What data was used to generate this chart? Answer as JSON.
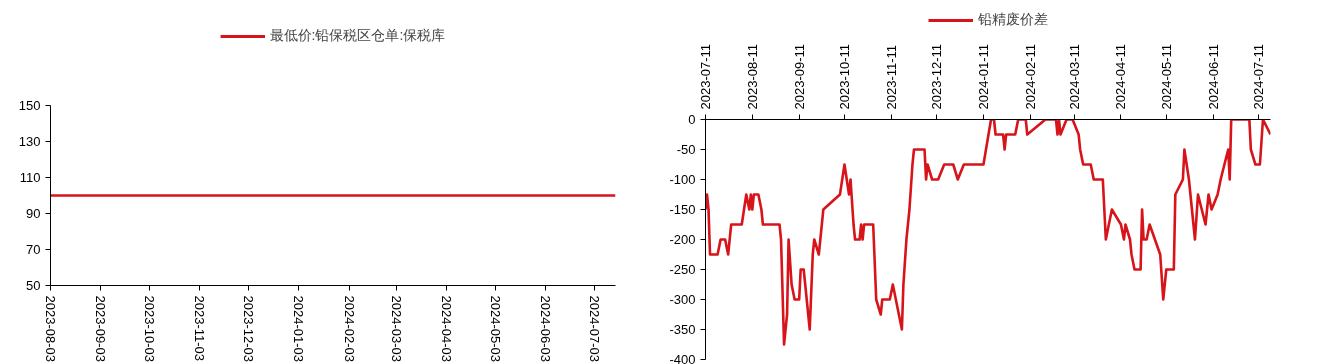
{
  "chart_data": [
    {
      "type": "line",
      "legend": "top",
      "marker": "none",
      "line_style": "solid",
      "grid": false,
      "x": [
        "2023-08-03",
        "2024-07-16"
      ],
      "series": [
        {
          "name": "最低价:铅保税区仓单:保税库",
          "color": "#d7141a",
          "values": [
            100,
            100
          ]
        }
      ],
      "xlim": [
        "2023-08-03",
        "2024-07-16"
      ],
      "xticks": [
        "2023-08-03",
        "2023-09-03",
        "2023-10-03",
        "2023-11-03",
        "2023-12-03",
        "2024-01-03",
        "2024-02-03",
        "2024-03-03",
        "2024-04-03",
        "2024-05-03",
        "2024-06-03",
        "2024-07-03"
      ],
      "ylim": [
        50,
        150
      ],
      "yticks": [
        50,
        70,
        90,
        110,
        130,
        150
      ]
    },
    {
      "type": "line",
      "legend": "top",
      "marker": "none",
      "line_style": "solid",
      "grid": false,
      "x": [
        "2023-07-11",
        "2023-07-12",
        "2023-07-13",
        "2023-07-14",
        "2023-07-19",
        "2023-07-21",
        "2023-07-24",
        "2023-07-26",
        "2023-07-28",
        "2023-08-04",
        "2023-08-07",
        "2023-08-09",
        "2023-08-10",
        "2023-08-11",
        "2023-08-12",
        "2023-08-15",
        "2023-08-17",
        "2023-08-18",
        "2023-08-29",
        "2023-08-30",
        "2023-09-01",
        "2023-09-03",
        "2023-09-04",
        "2023-09-06",
        "2023-09-08",
        "2023-09-11",
        "2023-09-12",
        "2023-09-14",
        "2023-09-18",
        "2023-09-20",
        "2023-09-21",
        "2023-09-24",
        "2023-09-27",
        "2023-10-08",
        "2023-10-11",
        "2023-10-14",
        "2023-10-15",
        "2023-10-17",
        "2023-10-18",
        "2023-10-21",
        "2023-10-22",
        "2023-10-23",
        "2023-10-24",
        "2023-10-30",
        "2023-11-01",
        "2023-11-04",
        "2023-11-05",
        "2023-11-10",
        "2023-11-12",
        "2023-11-14",
        "2023-11-18",
        "2023-11-19",
        "2023-11-21",
        "2023-11-23",
        "2023-11-25",
        "2023-11-26",
        "2023-12-03",
        "2023-12-04",
        "2023-12-05",
        "2023-12-08",
        "2023-12-12",
        "2023-12-16",
        "2023-12-22",
        "2023-12-25",
        "2023-12-29",
        "2024-01-11",
        "2024-01-16",
        "2024-01-18",
        "2024-01-19",
        "2024-01-24",
        "2024-01-25",
        "2024-01-26",
        "2024-02-01",
        "2024-02-03",
        "2024-02-08",
        "2024-02-09",
        "2024-02-21",
        "2024-02-28",
        "2024-02-29",
        "2024-03-01",
        "2024-03-02",
        "2024-03-06",
        "2024-03-10",
        "2024-03-14",
        "2024-03-15",
        "2024-03-17",
        "2024-03-22",
        "2024-03-24",
        "2024-03-30",
        "2024-04-01",
        "2024-04-05",
        "2024-04-11",
        "2024-04-13",
        "2024-04-14",
        "2024-04-17",
        "2024-04-18",
        "2024-04-20",
        "2024-04-24",
        "2024-04-25",
        "2024-04-26",
        "2024-04-28",
        "2024-04-30",
        "2024-05-07",
        "2024-05-09",
        "2024-05-11",
        "2024-05-16",
        "2024-05-17",
        "2024-05-22",
        "2024-05-23",
        "2024-05-26",
        "2024-05-30",
        "2024-06-01",
        "2024-06-06",
        "2024-06-08",
        "2024-06-10",
        "2024-06-14",
        "2024-06-16",
        "2024-06-21",
        "2024-06-22",
        "2024-06-23",
        "2024-07-05",
        "2024-07-06",
        "2024-07-09",
        "2024-07-12",
        "2024-07-14",
        "2024-07-19"
      ],
      "series": [
        {
          "name": "铅精废价差",
          "color": "#d7141a",
          "values": [
            -150,
            -125,
            -150,
            -225,
            -225,
            -200,
            -200,
            -225,
            -175,
            -175,
            -125,
            -150,
            -125,
            -150,
            -125,
            -125,
            -150,
            -175,
            -175,
            -200,
            -375,
            -325,
            -200,
            -275,
            -300,
            -300,
            -250,
            -250,
            -350,
            -225,
            -200,
            -225,
            -150,
            -125,
            -75,
            -125,
            -100,
            -175,
            -200,
            -200,
            -175,
            -200,
            -175,
            -175,
            -300,
            -325,
            -300,
            -300,
            -275,
            -300,
            -350,
            -275,
            -200,
            -150,
            -75,
            -50,
            -50,
            -100,
            -75,
            -100,
            -100,
            -75,
            -75,
            -100,
            -75,
            -75,
            0,
            0,
            -25,
            -25,
            -50,
            -25,
            -25,
            0,
            0,
            -25,
            0,
            0,
            -25,
            0,
            -25,
            0,
            0,
            -25,
            -50,
            -75,
            -75,
            -100,
            -100,
            -200,
            -150,
            -175,
            -200,
            -175,
            -200,
            -225,
            -250,
            -250,
            -150,
            -200,
            -200,
            -175,
            -225,
            -300,
            -250,
            -250,
            -125,
            -100,
            -50,
            -100,
            -200,
            -125,
            -175,
            -125,
            -150,
            -125,
            -100,
            -50,
            -100,
            0,
            0,
            -50,
            -75,
            -75,
            0,
            -25
          ]
        }
      ],
      "xlim": [
        "2023-07-11",
        "2024-07-19"
      ],
      "xticks": [
        "2023-07-11",
        "2023-08-11",
        "2023-09-11",
        "2023-10-11",
        "2023-11-11",
        "2023-12-11",
        "2024-01-11",
        "2024-02-11",
        "2024-03-11",
        "2024-04-11",
        "2024-05-11",
        "2024-06-11",
        "2024-07-11"
      ],
      "ylim": [
        -400,
        0
      ],
      "yticks": [
        -400,
        -350,
        -300,
        -250,
        -200,
        -150,
        -100,
        -50,
        0
      ]
    }
  ]
}
